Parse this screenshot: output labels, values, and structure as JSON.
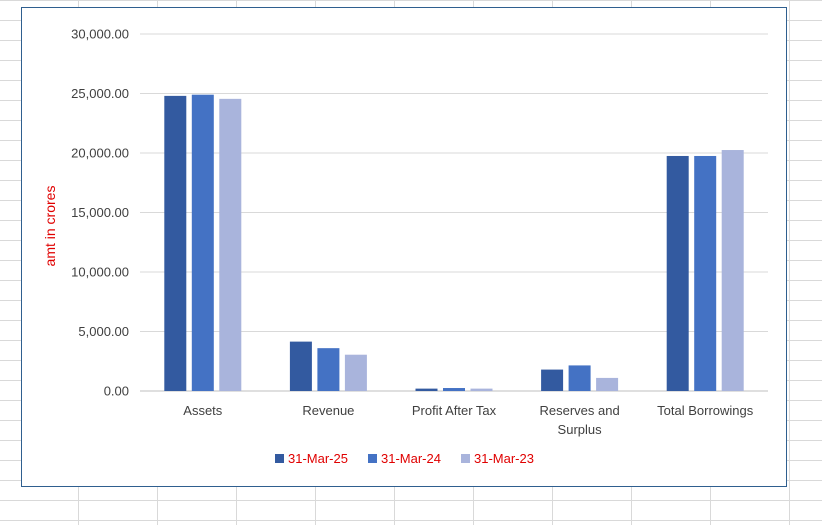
{
  "chart_data": {
    "type": "bar",
    "categories": [
      "Assets",
      "Revenue",
      "Profit After Tax",
      "Reserves and Surplus",
      "Total Borrowings"
    ],
    "series": [
      {
        "name": "31-Mar-25",
        "color": "#335aa0",
        "values": [
          24800,
          4150,
          200,
          1800,
          19750
        ]
      },
      {
        "name": "31-Mar-24",
        "color": "#4472c4",
        "values": [
          24900,
          3600,
          250,
          2150,
          19750
        ]
      },
      {
        "name": "31-Mar-23",
        "color": "#a9b4dc",
        "values": [
          24550,
          3050,
          200,
          1100,
          20250
        ]
      }
    ],
    "ylabel": "amt in crores",
    "ylim": [
      0,
      30000
    ],
    "yticks": [
      "0.00",
      "5,000.00",
      "10,000.00",
      "15,000.00",
      "20,000.00",
      "25,000.00",
      "30,000.00"
    ],
    "grid": true,
    "legend": "bottom"
  }
}
